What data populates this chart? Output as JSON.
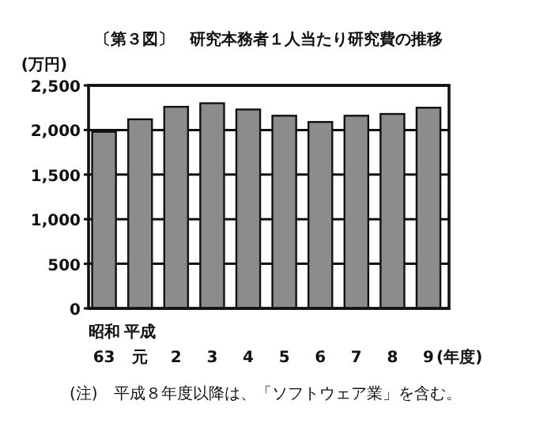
{
  "chart_data": {
    "type": "bar",
    "title": "〔第３図〕　研究本務者１人当たり研究費の推移",
    "ylabel": "(万円)",
    "xlabel": "(年度)",
    "categories": [
      "昭和63",
      "平成元",
      "2",
      "3",
      "4",
      "5",
      "6",
      "7",
      "8",
      "9"
    ],
    "values": [
      1980,
      2120,
      2260,
      2300,
      2230,
      2160,
      2090,
      2160,
      2180,
      2250
    ],
    "color": "#8c8c8c",
    "ylim": [
      0,
      2500
    ],
    "yticks": [
      0,
      {
        "value": 500,
        "label": "500"
      },
      {
        "value": 1000,
        "label": "1,000"
      },
      {
        "value": 1500,
        "label": "1,500"
      },
      {
        "value": 2000,
        "label": "2,000"
      },
      {
        "value": 2500,
        "label": "2,500"
      }
    ],
    "grid": "y",
    "annotations": [
      "(注)　平成８年度以降は、「ソフトウェア業」を含む。"
    ]
  }
}
